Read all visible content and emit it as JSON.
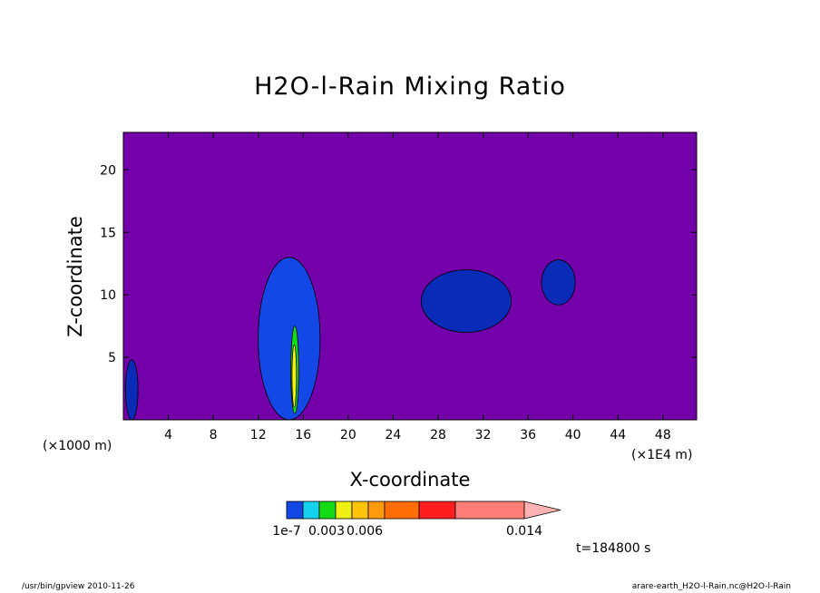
{
  "chart_data": {
    "type": "heatmap",
    "title": "H2O-l-Rain Mixing Ratio",
    "xlabel": "X-coordinate",
    "ylabel": "Z-coordinate",
    "x_unit_left": "(×1000 m)",
    "x_unit_right": "(×1E4 m)",
    "xlim": [
      0,
      51
    ],
    "ylim": [
      0,
      23
    ],
    "x_ticks": [
      4,
      8,
      12,
      16,
      20,
      24,
      28,
      32,
      36,
      40,
      44,
      48
    ],
    "y_ticks": [
      5,
      10,
      15,
      20
    ],
    "background_color": "#7300a8",
    "colorbar": {
      "colors": [
        "#1448e6",
        "#15d2ee",
        "#14dc14",
        "#f0f014",
        "#ffc40a",
        "#ff9a0a",
        "#ff6e06",
        "#ff1e1e",
        "#ff7f78",
        "#ffb4b4"
      ],
      "labels": [
        {
          "text": "1e-7",
          "value": 1e-07
        },
        {
          "text": "0.003",
          "value": 0.003
        },
        {
          "text": "0.006",
          "value": 0.006
        },
        {
          "text": "0.014",
          "value": 0.014
        }
      ]
    },
    "contour_levels": [
      "#1448e6",
      "#0a2ab8",
      "#14dc14",
      "#f0f014"
    ],
    "regions": [
      {
        "name": "cell-x1",
        "level": 1,
        "x_range": [
          0.2,
          1.3
        ],
        "z_range": [
          0,
          4.8
        ]
      },
      {
        "name": "cell-x15",
        "level": 0,
        "x_range": [
          12,
          17.5
        ],
        "z_range": [
          0,
          13
        ]
      },
      {
        "name": "core-x15",
        "level": 2,
        "x_range": [
          14.9,
          15.6
        ],
        "z_range": [
          0.5,
          7.5
        ]
      },
      {
        "name": "core-x15-yellow",
        "level": 3,
        "x_range": [
          15.0,
          15.4
        ],
        "z_range": [
          1,
          6
        ]
      },
      {
        "name": "cell-x29",
        "level": 1,
        "x_range": [
          26.5,
          34.5
        ],
        "z_range": [
          7,
          12
        ]
      },
      {
        "name": "cell-x39",
        "level": 1,
        "x_range": [
          37.2,
          40.2
        ],
        "z_range": [
          9.2,
          12.8
        ]
      }
    ]
  },
  "time_label": "t=184800 s",
  "footer": {
    "left": "/usr/bin/gpview   2010-11-26",
    "right": "arare-earth_H2O-l-Rain.nc@H2O-l-Rain"
  }
}
